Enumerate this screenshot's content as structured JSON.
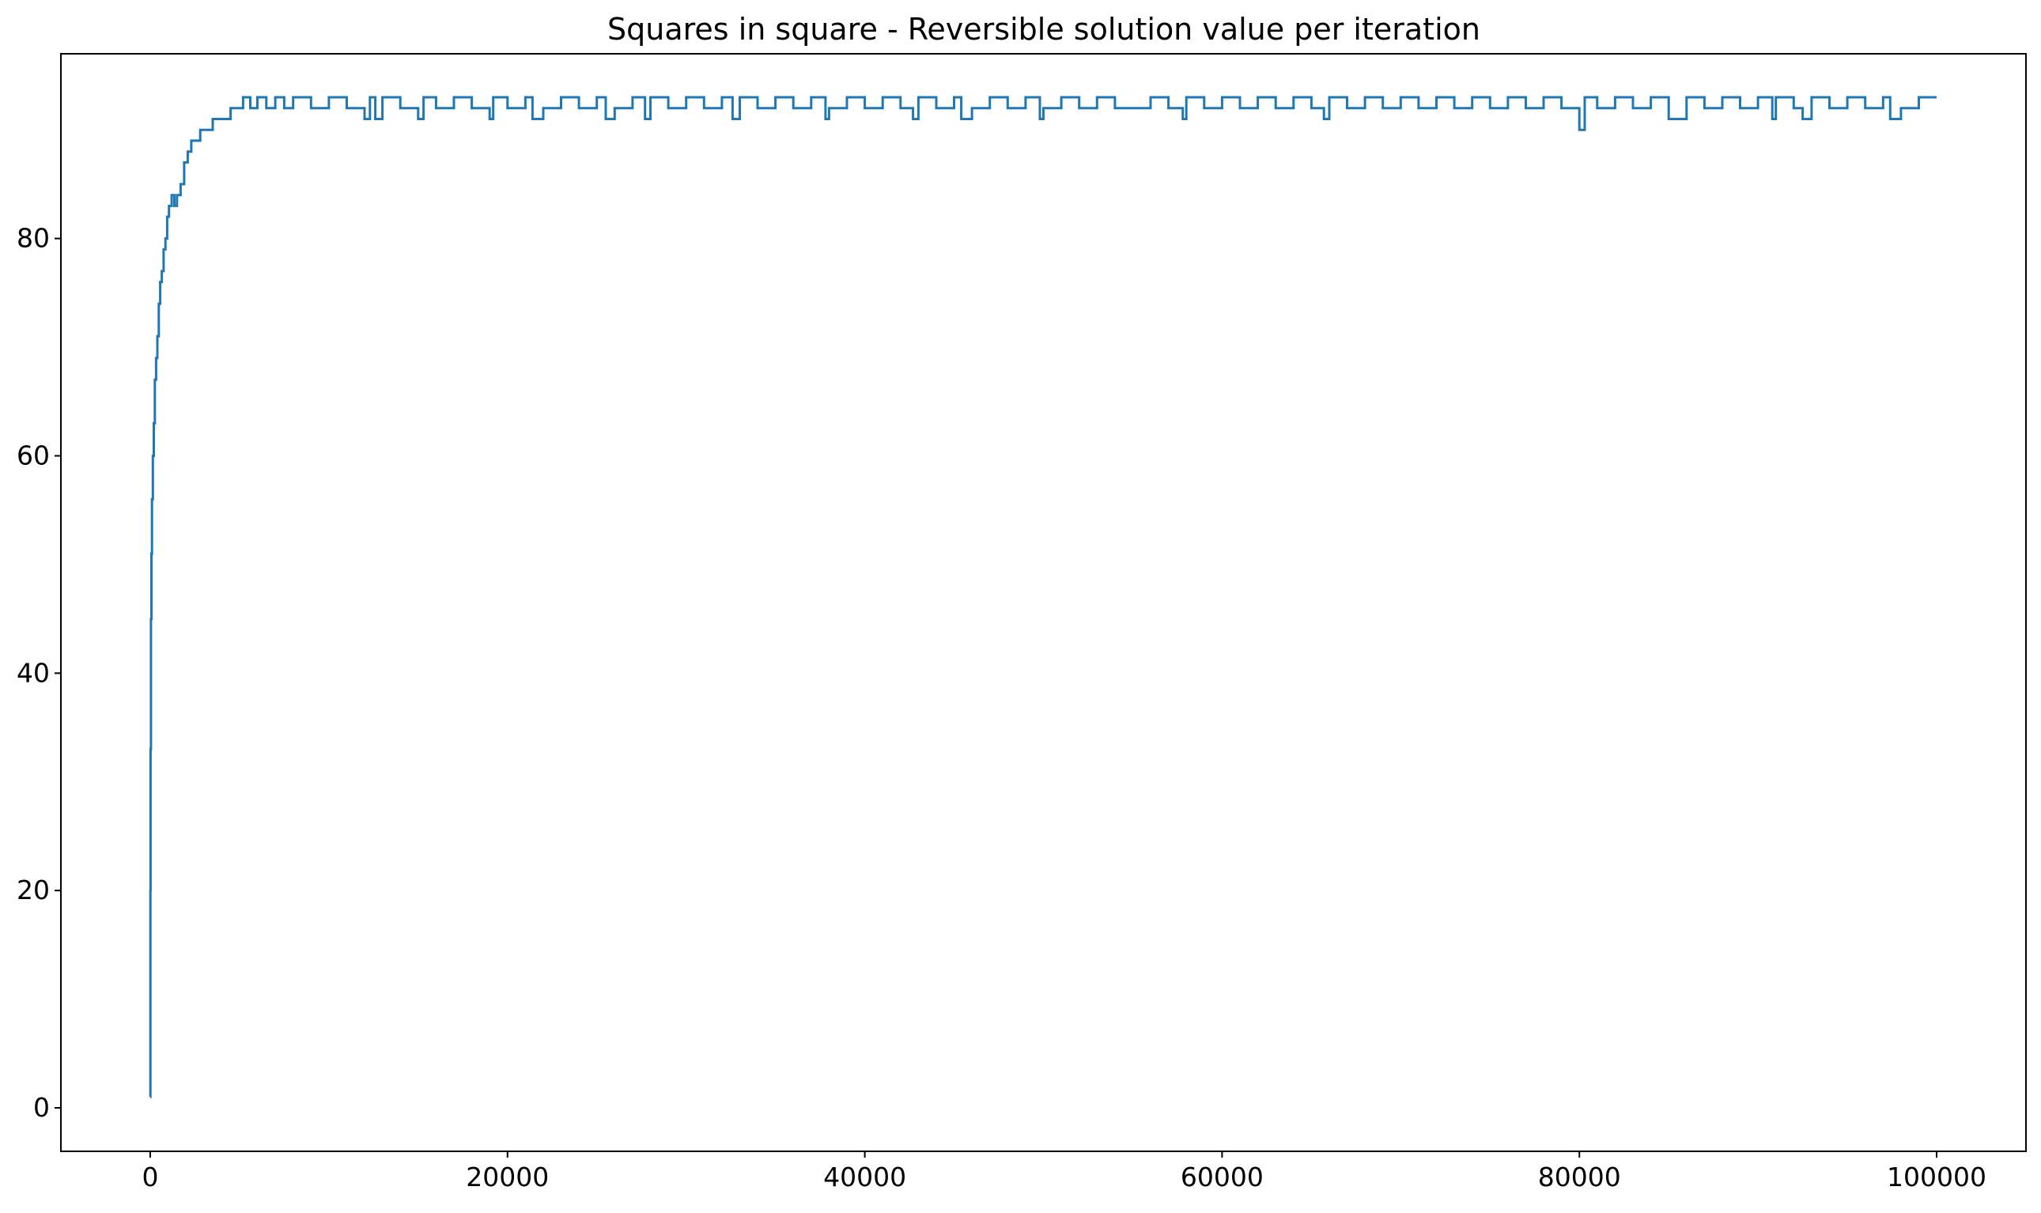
{
  "chart_data": {
    "type": "line",
    "title": "Squares in square - Reversible solution value per iteration",
    "xlabel": "",
    "ylabel": "",
    "xlim": [
      -5000,
      105000
    ],
    "ylim": [
      -4,
      97
    ],
    "x_ticks": [
      0,
      20000,
      40000,
      60000,
      80000,
      100000
    ],
    "x_tick_labels": [
      "0",
      "20000",
      "40000",
      "60000",
      "80000",
      "100000"
    ],
    "y_ticks": [
      0,
      20,
      40,
      60,
      80
    ],
    "y_tick_labels": [
      "0",
      "20",
      "40",
      "60",
      "80"
    ],
    "grid": false,
    "legend": "none",
    "series": [
      {
        "color": "#1f77b4",
        "x": [
          0,
          10,
          20,
          40,
          70,
          100,
          150,
          200,
          260,
          330,
          400,
          480,
          560,
          650,
          750,
          850,
          950,
          1050,
          1200,
          1350,
          1500,
          1700,
          1900,
          2100,
          2300,
          2500,
          2800,
          3100,
          3500,
          4000,
          4500,
          5000,
          5200,
          5600,
          6000,
          6500,
          7000,
          7500,
          8000,
          9000,
          10000,
          11000,
          12000,
          12300,
          12600,
          13000,
          14000,
          15000,
          15300,
          16000,
          17000,
          18000,
          19000,
          19200,
          20000,
          21000,
          21400,
          22000,
          23000,
          24000,
          25000,
          25500,
          26000,
          27000,
          27700,
          28000,
          29000,
          30000,
          31000,
          32000,
          32600,
          33000,
          34000,
          35000,
          36000,
          37000,
          37800,
          38000,
          39000,
          40000,
          41000,
          42000,
          42700,
          43000,
          44000,
          45000,
          45400,
          46000,
          47000,
          48000,
          49000,
          49800,
          50000,
          51000,
          52000,
          53000,
          54000,
          55000,
          56000,
          57000,
          57800,
          58000,
          59000,
          60000,
          61000,
          62000,
          63000,
          64000,
          65000,
          65700,
          66000,
          67000,
          68000,
          69000,
          70000,
          71000,
          72000,
          73000,
          74000,
          75000,
          76000,
          77000,
          78000,
          79000,
          80000,
          80300,
          81000,
          82000,
          83000,
          84000,
          85000,
          86000,
          87000,
          88000,
          89000,
          90000,
          90800,
          91000,
          92000,
          92500,
          93000,
          94000,
          95000,
          96000,
          97000,
          97400,
          98000,
          99000,
          100000
        ],
        "y": [
          1,
          20,
          33,
          45,
          51,
          56,
          60,
          63,
          67,
          69,
          71,
          74,
          76,
          77,
          79,
          80,
          82,
          83,
          84,
          83,
          84,
          85,
          87,
          88,
          89,
          89,
          90,
          90,
          91,
          91,
          92,
          92,
          93,
          92,
          93,
          92,
          93,
          92,
          93,
          92,
          93,
          92,
          91,
          93,
          91,
          93,
          92,
          91,
          93,
          92,
          93,
          92,
          91,
          93,
          92,
          93,
          91,
          92,
          93,
          92,
          93,
          91,
          92,
          93,
          91,
          93,
          92,
          93,
          92,
          93,
          91,
          93,
          92,
          93,
          92,
          93,
          91,
          92,
          93,
          92,
          93,
          92,
          91,
          93,
          92,
          93,
          91,
          92,
          93,
          92,
          93,
          91,
          92,
          93,
          92,
          93,
          92,
          92,
          93,
          92,
          91,
          93,
          92,
          93,
          92,
          93,
          92,
          93,
          92,
          91,
          93,
          92,
          93,
          92,
          93,
          92,
          93,
          92,
          93,
          92,
          93,
          92,
          93,
          92,
          90,
          93,
          92,
          93,
          92,
          93,
          91,
          93,
          92,
          93,
          92,
          93,
          91,
          93,
          92,
          91,
          93,
          92,
          93,
          92,
          93,
          91,
          92,
          93,
          93
        ]
      }
    ]
  }
}
